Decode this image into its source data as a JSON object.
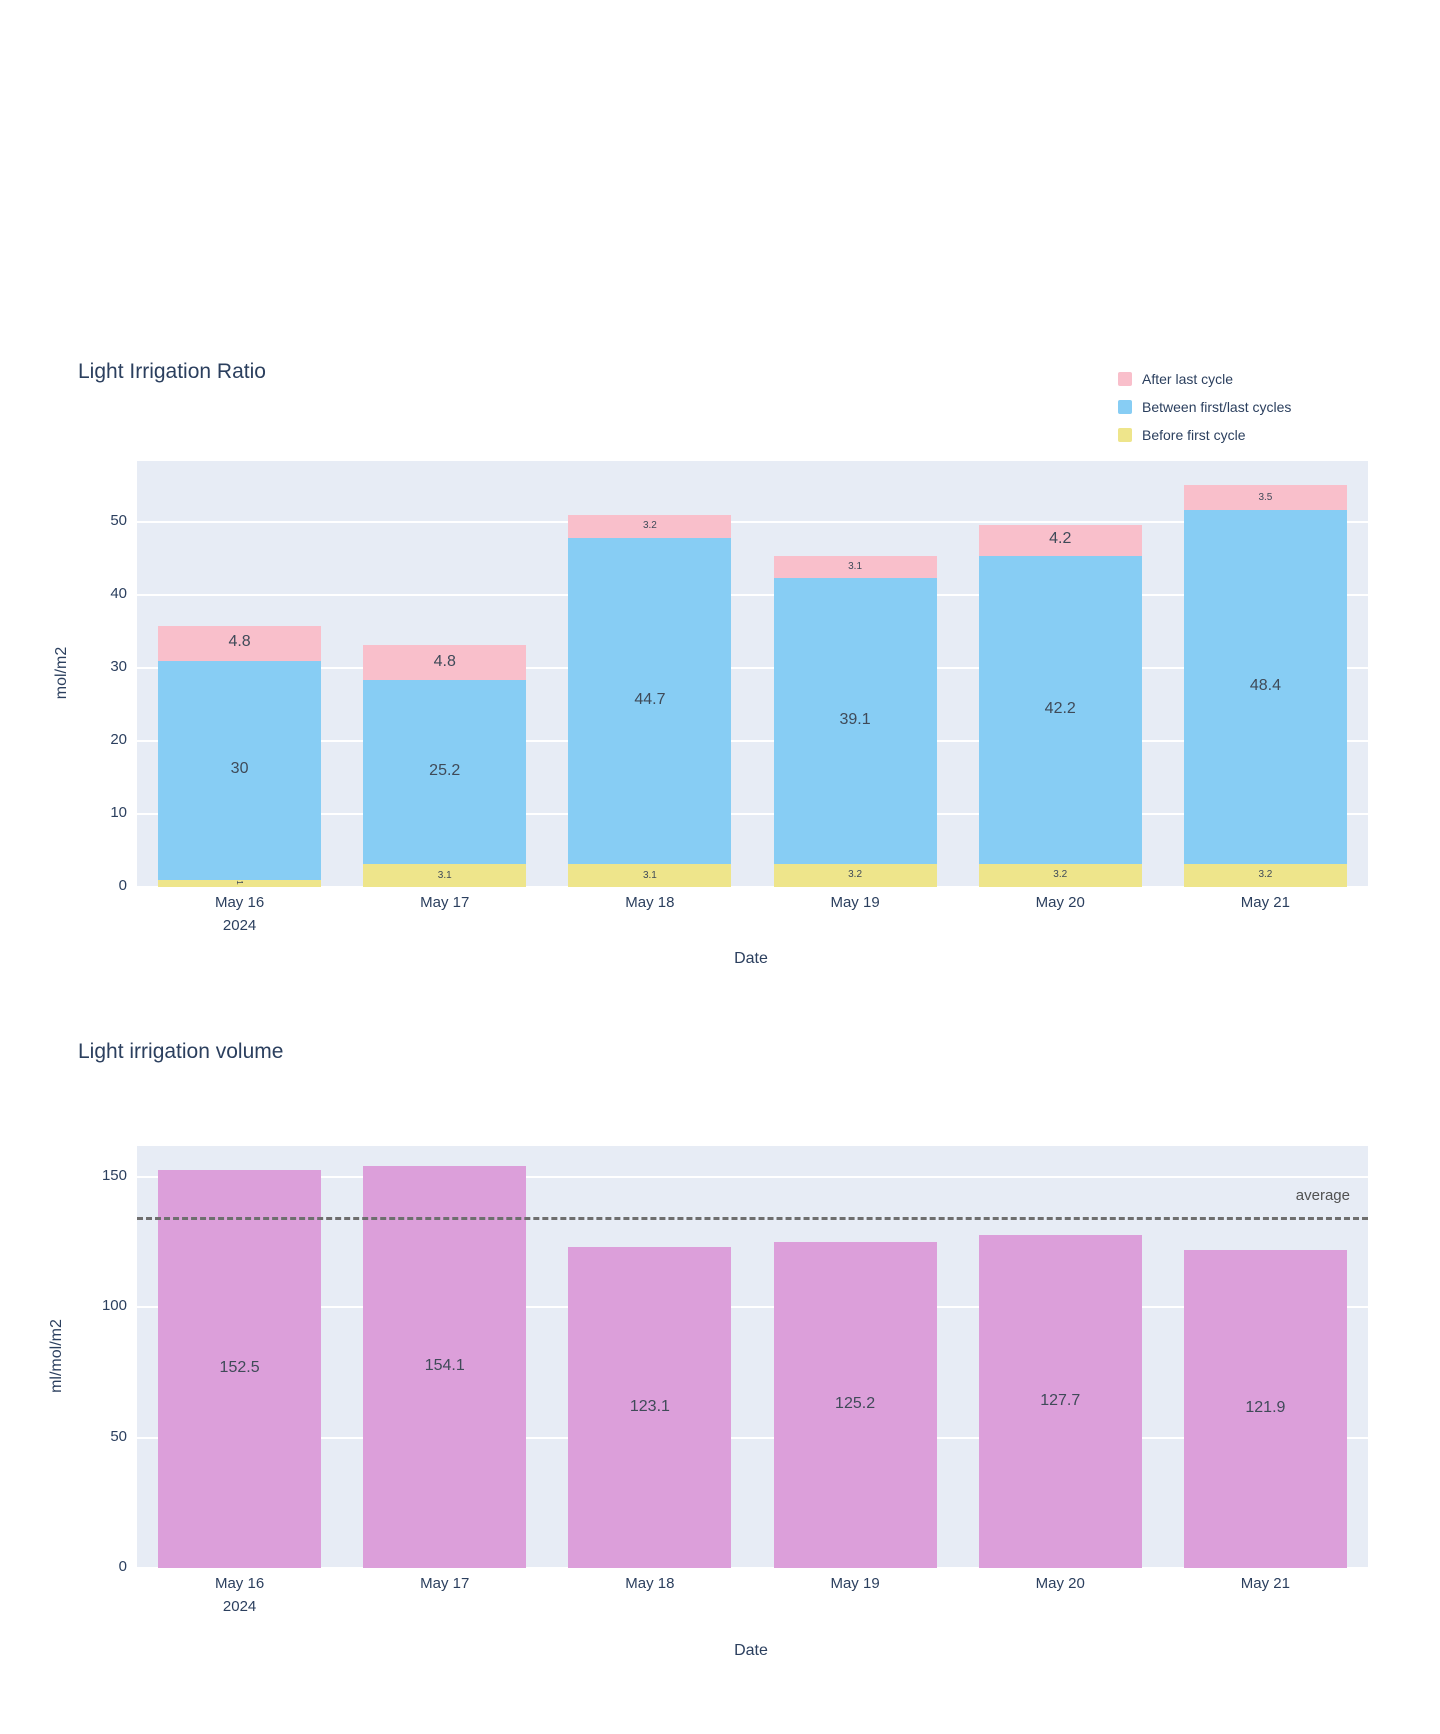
{
  "theme": {
    "plot_bg": "#e7ecf5",
    "grid_color": "#ffffff",
    "text_color": "#2b3f5e",
    "inside_label_color": "#3f4a58"
  },
  "chart_data": [
    {
      "type": "bar",
      "stacked": true,
      "title": "Light Irrigation Ratio",
      "xlabel": "Date",
      "ylabel": "mol/m2",
      "categories": [
        "May 16",
        "May 17",
        "May 18",
        "May 19",
        "May 20",
        "May 21"
      ],
      "first_category_subline": "2024",
      "yticks": [
        0,
        10,
        20,
        30,
        40,
        50
      ],
      "ylim": [
        0,
        58.4
      ],
      "grid": true,
      "legend_position": "top-right",
      "legend": [
        {
          "label": "After last cycle",
          "color": "#f9bfcb"
        },
        {
          "label": "Between first/last cycles",
          "color": "#87cdf4"
        },
        {
          "label": "Before first cycle",
          "color": "#eee58b"
        }
      ],
      "series": [
        {
          "name": "Before first cycle",
          "color": "#eee58b",
          "values": [
            1,
            3.1,
            3.1,
            3.2,
            3.2,
            3.2
          ],
          "labels": [
            "1",
            "3.1",
            "3.1",
            "3.2",
            "3.2",
            "3.2"
          ]
        },
        {
          "name": "Between first/last cycles",
          "color": "#87cdf4",
          "values": [
            30,
            25.2,
            44.7,
            39.1,
            42.2,
            48.4
          ],
          "labels": [
            "30",
            "25.2",
            "44.7",
            "39.1",
            "42.2",
            "48.4"
          ]
        },
        {
          "name": "After last cycle",
          "color": "#f9bfcb",
          "values": [
            4.8,
            4.8,
            3.2,
            3.1,
            4.2,
            3.5
          ],
          "labels": [
            "4.8",
            "4.8",
            "3.2",
            "3.1",
            "4.2",
            "3.5"
          ]
        }
      ]
    },
    {
      "type": "bar",
      "stacked": false,
      "title": "Light irrigation volume",
      "xlabel": "Date",
      "ylabel": "ml/mol/m2",
      "categories": [
        "May 16",
        "May 17",
        "May 18",
        "May 19",
        "May 20",
        "May 21"
      ],
      "first_category_subline": "2024",
      "yticks": [
        0,
        50,
        100,
        150
      ],
      "ylim": [
        0,
        161.9
      ],
      "grid": true,
      "series": [
        {
          "name": "volume",
          "color": "#dc9fda",
          "values": [
            152.5,
            154.1,
            123.1,
            125.2,
            127.7,
            121.9
          ],
          "labels": [
            "152.5",
            "154.1",
            "123.1",
            "125.2",
            "127.7",
            "121.9"
          ]
        }
      ],
      "average_line": {
        "label": "average",
        "value": 134.1,
        "color": "#6e6e6e",
        "style": "dashed"
      }
    }
  ]
}
